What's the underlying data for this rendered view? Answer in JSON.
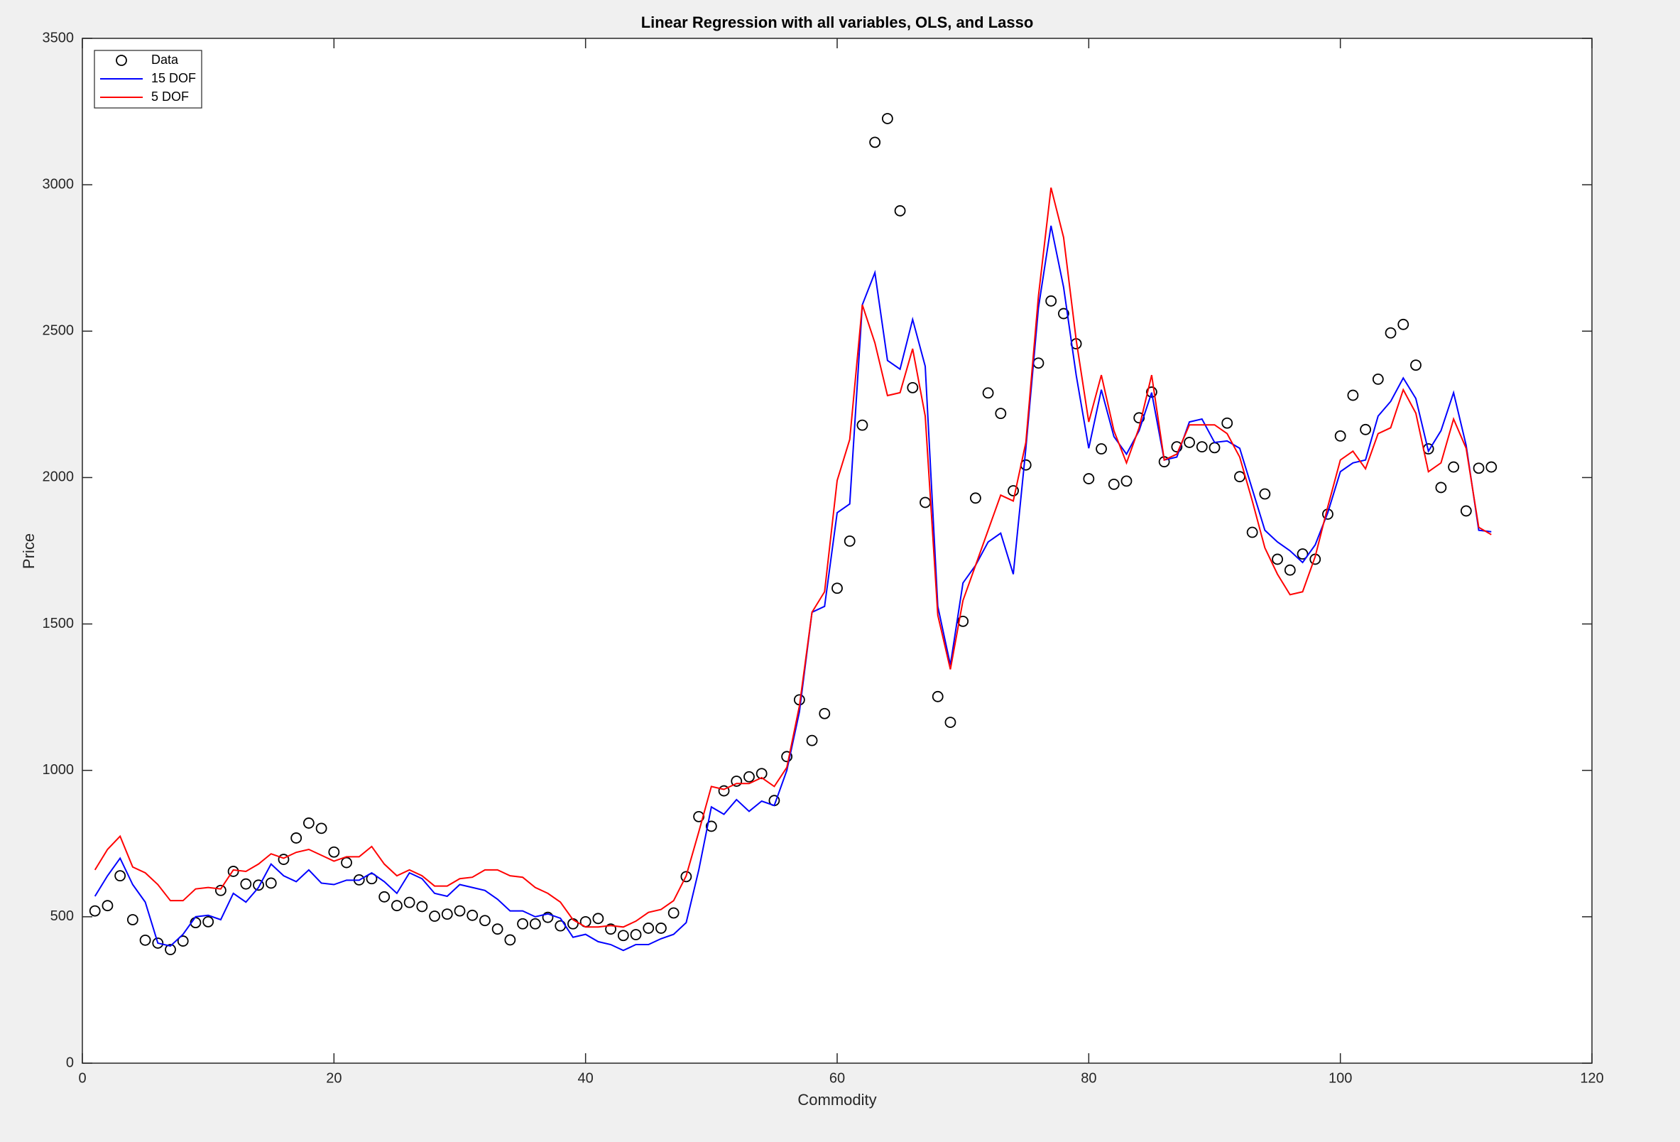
{
  "chart_data": {
    "type": "line",
    "title": "Linear Regression with all variables, OLS, and Lasso",
    "x_label": "Commodity",
    "y_label": "Price",
    "xlim": [
      0,
      120
    ],
    "xticks": [
      0,
      20,
      40,
      60,
      80,
      100,
      120
    ],
    "ylim": [
      0,
      3500
    ],
    "yticks": [
      0,
      500,
      1000,
      1500,
      2000,
      2500,
      3000,
      3500
    ],
    "grid": false,
    "legend_position": "northwest",
    "x": [
      1,
      2,
      3,
      4,
      5,
      6,
      7,
      8,
      9,
      10,
      11,
      12,
      13,
      14,
      15,
      16,
      17,
      18,
      19,
      20,
      21,
      22,
      23,
      24,
      25,
      26,
      27,
      28,
      29,
      30,
      31,
      32,
      33,
      34,
      35,
      36,
      37,
      38,
      39,
      40,
      41,
      42,
      43,
      44,
      45,
      46,
      47,
      48,
      49,
      50,
      51,
      52,
      53,
      54,
      55,
      56,
      57,
      58,
      59,
      60,
      61,
      62,
      63,
      64,
      65,
      66,
      67,
      68,
      69,
      70,
      71,
      72,
      73,
      74,
      75,
      76,
      77,
      78,
      79,
      80,
      81,
      82,
      83,
      84,
      85,
      86,
      87,
      88,
      89,
      90,
      91,
      92,
      93,
      94,
      95,
      96,
      97,
      98,
      99,
      100,
      101,
      102,
      103,
      104,
      105,
      106,
      107,
      108,
      109,
      110,
      111,
      112
    ],
    "series": [
      {
        "name": "Data",
        "mode": "markers",
        "color": "#000000",
        "values": [
          520,
          538,
          640,
          490,
          420,
          410,
          388,
          417,
          480,
          483,
          590,
          655,
          612,
          608,
          615,
          696,
          769,
          820,
          802,
          721,
          685,
          626,
          630,
          568,
          538,
          549,
          535,
          502,
          509,
          520,
          505,
          487,
          458,
          421,
          476,
          476,
          498,
          469,
          476,
          483,
          494,
          458,
          436,
          439,
          461,
          461,
          513,
          637,
          842,
          809,
          930,
          963,
          978,
          989,
          897,
          1047,
          1241,
          1102,
          1194,
          1622,
          1783,
          2179,
          3145,
          3226,
          2911,
          2307,
          1915,
          1252,
          1164,
          1509,
          1930,
          2289,
          2219,
          1955,
          2043,
          2391,
          2603,
          2560,
          2457,
          1996,
          2098,
          1977,
          1988,
          2204,
          2292,
          2054,
          2105,
          2120,
          2105,
          2102,
          2186,
          2003,
          1813,
          1944,
          1721,
          1684,
          1739,
          1721,
          1875,
          2142,
          2281,
          2164,
          2336,
          2494,
          2523,
          2384,
          2098,
          1966,
          2036,
          1886,
          2032,
          2036
        ]
      },
      {
        "name": "15 DOF",
        "mode": "line",
        "color": "#0000ff",
        "values": [
          570,
          640,
          700,
          610,
          550,
          410,
          400,
          440,
          500,
          505,
          490,
          580,
          550,
          600,
          680,
          640,
          620,
          660,
          615,
          610,
          625,
          625,
          650,
          620,
          580,
          650,
          630,
          580,
          570,
          610,
          600,
          590,
          560,
          520,
          520,
          500,
          510,
          495,
          430,
          440,
          415,
          405,
          385,
          405,
          405,
          425,
          440,
          480,
          660,
          875,
          850,
          900,
          860,
          895,
          880,
          1000,
          1200,
          1540,
          1560,
          1880,
          1910,
          2590,
          2700,
          2400,
          2370,
          2540,
          2380,
          1560,
          1360,
          1640,
          1700,
          1780,
          1810,
          1670,
          2100,
          2580,
          2860,
          2650,
          2350,
          2100,
          2300,
          2140,
          2080,
          2160,
          2290,
          2060,
          2070,
          2190,
          2200,
          2120,
          2125,
          2100,
          1960,
          1820,
          1780,
          1750,
          1710,
          1770,
          1880,
          2020,
          2050,
          2060,
          2210,
          2260,
          2340,
          2270,
          2090,
          2160,
          2290,
          2110,
          1820,
          1815
        ]
      },
      {
        "name": "5 DOF",
        "mode": "line",
        "color": "#ff0000",
        "values": [
          660,
          730,
          775,
          670,
          650,
          610,
          555,
          555,
          595,
          600,
          595,
          660,
          655,
          680,
          715,
          700,
          720,
          730,
          710,
          690,
          705,
          705,
          740,
          680,
          640,
          660,
          640,
          605,
          605,
          630,
          635,
          660,
          660,
          640,
          635,
          600,
          580,
          550,
          490,
          465,
          465,
          470,
          465,
          485,
          515,
          525,
          555,
          640,
          790,
          945,
          935,
          955,
          955,
          975,
          945,
          1010,
          1220,
          1540,
          1610,
          1990,
          2130,
          2590,
          2460,
          2280,
          2290,
          2440,
          2210,
          1530,
          1345,
          1580,
          1700,
          1820,
          1940,
          1920,
          2120,
          2620,
          2990,
          2820,
          2470,
          2190,
          2350,
          2160,
          2050,
          2170,
          2350,
          2060,
          2080,
          2180,
          2180,
          2180,
          2150,
          2070,
          1920,
          1760,
          1670,
          1600,
          1610,
          1730,
          1900,
          2060,
          2090,
          2030,
          2150,
          2170,
          2300,
          2220,
          2020,
          2050,
          2200,
          2100,
          1830,
          1805
        ]
      }
    ]
  }
}
